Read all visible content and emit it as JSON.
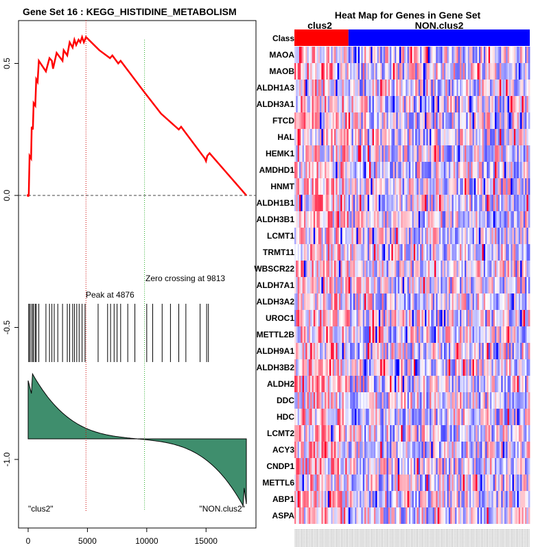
{
  "left_panel": {
    "title": "Gene Set  16 : KEGG_HISTIDINE_METABOLISM",
    "peak_label": "Peak at 4876",
    "zero_label": "Zero crossing at 9813",
    "left_class_label": "\"clus2\"",
    "right_class_label": "\"NON.clus2\""
  },
  "right_panel": {
    "title": "Heat Map for Genes in Gene Set",
    "class_row_label": "Class",
    "group1_label": "clus2",
    "group2_label": "NON.clus2",
    "colors": {
      "group1": "#ff0000",
      "group2": "#0000ff"
    }
  },
  "chart_data": [
    {
      "type": "line",
      "title": "Gene Set  16 : KEGG_HISTIDINE_METABOLISM",
      "description": "GSEA running enrichment score",
      "x_ticks": [
        0,
        5000,
        10000,
        15000
      ],
      "y_ticks": [
        0.5,
        0.0,
        -0.5,
        -1.0
      ],
      "y_tick_labels": [
        "0.5",
        "0.0",
        "-0.5",
        "-1.0"
      ],
      "xlim": [
        -1000,
        19000
      ],
      "ylim": [
        -1.27,
        0.68
      ],
      "n_genes": 18500,
      "peak": 4876,
      "zero_crossing": 9813,
      "line_color": "#ff0000",
      "enrichment_curve": [
        [
          0,
          0.0
        ],
        [
          50,
          0.0
        ],
        [
          120,
          0.15
        ],
        [
          250,
          0.14
        ],
        [
          300,
          0.26
        ],
        [
          400,
          0.25
        ],
        [
          460,
          0.35
        ],
        [
          600,
          0.34
        ],
        [
          680,
          0.44
        ],
        [
          800,
          0.43
        ],
        [
          900,
          0.51
        ],
        [
          1500,
          0.47
        ],
        [
          1800,
          0.52
        ],
        [
          2000,
          0.51
        ],
        [
          2100,
          0.48
        ],
        [
          2400,
          0.54
        ],
        [
          2900,
          0.51
        ],
        [
          3000,
          0.55
        ],
        [
          3300,
          0.53
        ],
        [
          3500,
          0.58
        ],
        [
          3750,
          0.56
        ],
        [
          3900,
          0.59
        ],
        [
          4050,
          0.57
        ],
        [
          4250,
          0.59
        ],
        [
          4400,
          0.58
        ],
        [
          4550,
          0.6
        ],
        [
          4700,
          0.58
        ],
        [
          4876,
          0.6
        ],
        [
          6000,
          0.55
        ],
        [
          6900,
          0.52
        ],
        [
          7100,
          0.53
        ],
        [
          7600,
          0.5
        ],
        [
          7800,
          0.51
        ],
        [
          9813,
          0.39
        ],
        [
          11200,
          0.31
        ],
        [
          12700,
          0.25
        ],
        [
          12900,
          0.26
        ],
        [
          14900,
          0.14
        ],
        [
          15000,
          0.13
        ],
        [
          15100,
          0.15
        ],
        [
          15300,
          0.16
        ],
        [
          18400,
          0.0
        ]
      ],
      "gene_hit_positions": [
        50,
        120,
        250,
        380,
        460,
        600,
        680,
        900,
        1500,
        1800,
        2000,
        2200,
        2500,
        2900,
        3300,
        3500,
        3750,
        3900,
        4100,
        4300,
        4550,
        4800,
        5900,
        6700,
        6950,
        7250,
        7500,
        7800,
        8400,
        9000,
        10000,
        10500,
        11300,
        12000,
        12700,
        13300,
        14500,
        15050,
        15200
      ],
      "ranked_metric_fill_color": "#3f8e6d"
    },
    {
      "type": "heatmap",
      "title": "Heat Map for Genes in Gene Set",
      "rows": [
        "MAOA",
        "MAOB",
        "ALDH1A3",
        "ALDH3A1",
        "FTCD",
        "HAL",
        "HEMK1",
        "AMDHD1",
        "HNMT",
        "ALDH1B1",
        "ALDH3B1",
        "LCMT1",
        "TRMT11",
        "WBSCR22",
        "ALDH7A1",
        "ALDH3A2",
        "UROC1",
        "METTL2B",
        "ALDH9A1",
        "ALDH3B2",
        "ALDH2",
        "DDC",
        "HDC",
        "LCMT2",
        "ACY3",
        "CNDP1",
        "METTL6",
        "ABP1",
        "ASPA"
      ],
      "column_groups": [
        {
          "name": "clus2",
          "count": 34
        },
        {
          "name": "NON.clus2",
          "count": 114
        }
      ],
      "color_scale": [
        "#0000ff",
        "#ffffff",
        "#ff0000"
      ]
    }
  ]
}
